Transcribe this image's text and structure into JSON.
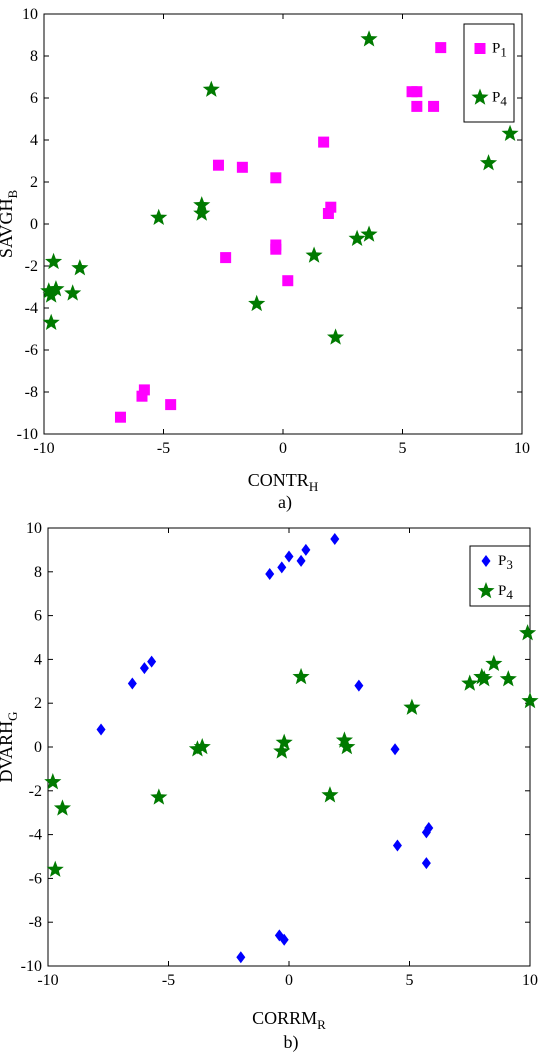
{
  "chart_data": [
    {
      "type": "scatter",
      "caption": "a)",
      "xlabel": "CONTR",
      "xlabel_sub": "H",
      "ylabel": "SAVGH",
      "ylabel_sub": "B",
      "xlim": [
        -10,
        10
      ],
      "ylim": [
        -10,
        10
      ],
      "xticks": [
        -10,
        -5,
        0,
        5,
        10
      ],
      "yticks": [
        -10,
        -8,
        -6,
        -4,
        -2,
        0,
        2,
        4,
        6,
        8,
        10
      ],
      "grid": false,
      "legend_position": "top-right",
      "series": [
        {
          "name": "P",
          "name_sub": "1",
          "marker": "square",
          "color": "#ff00ff",
          "points": [
            [
              6.6,
              8.4
            ],
            [
              5.4,
              6.3
            ],
            [
              5.6,
              6.3
            ],
            [
              6.3,
              5.6
            ],
            [
              5.6,
              5.6
            ],
            [
              1.7,
              3.9
            ],
            [
              -2.7,
              2.8
            ],
            [
              -1.7,
              2.7
            ],
            [
              -0.3,
              2.2
            ],
            [
              2.0,
              0.8
            ],
            [
              1.9,
              0.5
            ],
            [
              -0.3,
              -1.0
            ],
            [
              -0.3,
              -1.2
            ],
            [
              -2.4,
              -1.6
            ],
            [
              0.2,
              -2.7
            ],
            [
              -5.8,
              -7.9
            ],
            [
              -5.9,
              -8.2
            ],
            [
              -4.7,
              -8.6
            ],
            [
              -6.8,
              -9.2
            ]
          ]
        },
        {
          "name": "P",
          "name_sub": "4",
          "marker": "star",
          "color": "#007a00",
          "points": [
            [
              3.6,
              8.8
            ],
            [
              -3.0,
              6.4
            ],
            [
              9.5,
              4.3
            ],
            [
              8.6,
              2.9
            ],
            [
              -3.4,
              0.9
            ],
            [
              -3.4,
              0.5
            ],
            [
              -5.2,
              0.3
            ],
            [
              3.6,
              -0.5
            ],
            [
              3.1,
              -0.7
            ],
            [
              1.3,
              -1.5
            ],
            [
              -9.6,
              -1.8
            ],
            [
              -8.5,
              -2.1
            ],
            [
              -9.5,
              -3.1
            ],
            [
              -9.7,
              -3.4
            ],
            [
              -8.8,
              -3.3
            ],
            [
              -9.8,
              -3.2
            ],
            [
              -1.1,
              -3.8
            ],
            [
              -9.7,
              -4.7
            ],
            [
              2.2,
              -5.4
            ]
          ]
        }
      ]
    },
    {
      "type": "scatter",
      "caption": "b)",
      "xlabel": "CORRM",
      "xlabel_sub": "R",
      "ylabel": "DVARH",
      "ylabel_sub": "G",
      "xlim": [
        -10,
        10
      ],
      "ylim": [
        -10,
        10
      ],
      "xticks": [
        -10,
        -5,
        0,
        5,
        10
      ],
      "yticks": [
        -10,
        -8,
        -6,
        -4,
        -2,
        0,
        2,
        4,
        6,
        8,
        10
      ],
      "grid": false,
      "legend_position": "top-right",
      "series": [
        {
          "name": "P",
          "name_sub": "3",
          "marker": "diamond",
          "color": "#0000ff",
          "points": [
            [
              1.9,
              9.5
            ],
            [
              0.7,
              9.0
            ],
            [
              0.5,
              8.5
            ],
            [
              0.0,
              8.7
            ],
            [
              -0.3,
              8.2
            ],
            [
              -0.8,
              7.9
            ],
            [
              -5.7,
              3.9
            ],
            [
              -6.0,
              3.6
            ],
            [
              -6.5,
              2.9
            ],
            [
              2.9,
              2.8
            ],
            [
              -7.8,
              0.8
            ],
            [
              4.4,
              -0.1
            ],
            [
              5.8,
              -3.7
            ],
            [
              5.7,
              -3.9
            ],
            [
              4.5,
              -4.5
            ],
            [
              5.7,
              -5.3
            ],
            [
              -0.4,
              -8.6
            ],
            [
              -0.2,
              -8.8
            ],
            [
              -2.0,
              -9.6
            ]
          ]
        },
        {
          "name": "P",
          "name_sub": "4",
          "marker": "star",
          "color": "#007a00",
          "points": [
            [
              9.9,
              5.2
            ],
            [
              8.5,
              3.8
            ],
            [
              0.5,
              3.2
            ],
            [
              8.0,
              3.2
            ],
            [
              8.1,
              3.1
            ],
            [
              9.1,
              3.1
            ],
            [
              7.5,
              2.9
            ],
            [
              10.0,
              2.1
            ],
            [
              5.1,
              1.8
            ],
            [
              2.3,
              0.3
            ],
            [
              -0.2,
              0.2
            ],
            [
              -3.6,
              0.0
            ],
            [
              2.4,
              0.0
            ],
            [
              -3.8,
              -0.1
            ],
            [
              -0.3,
              -0.2
            ],
            [
              -9.8,
              -1.6
            ],
            [
              1.7,
              -2.2
            ],
            [
              -5.4,
              -2.3
            ],
            [
              -9.4,
              -2.8
            ],
            [
              -9.7,
              -5.6
            ]
          ]
        }
      ]
    }
  ]
}
